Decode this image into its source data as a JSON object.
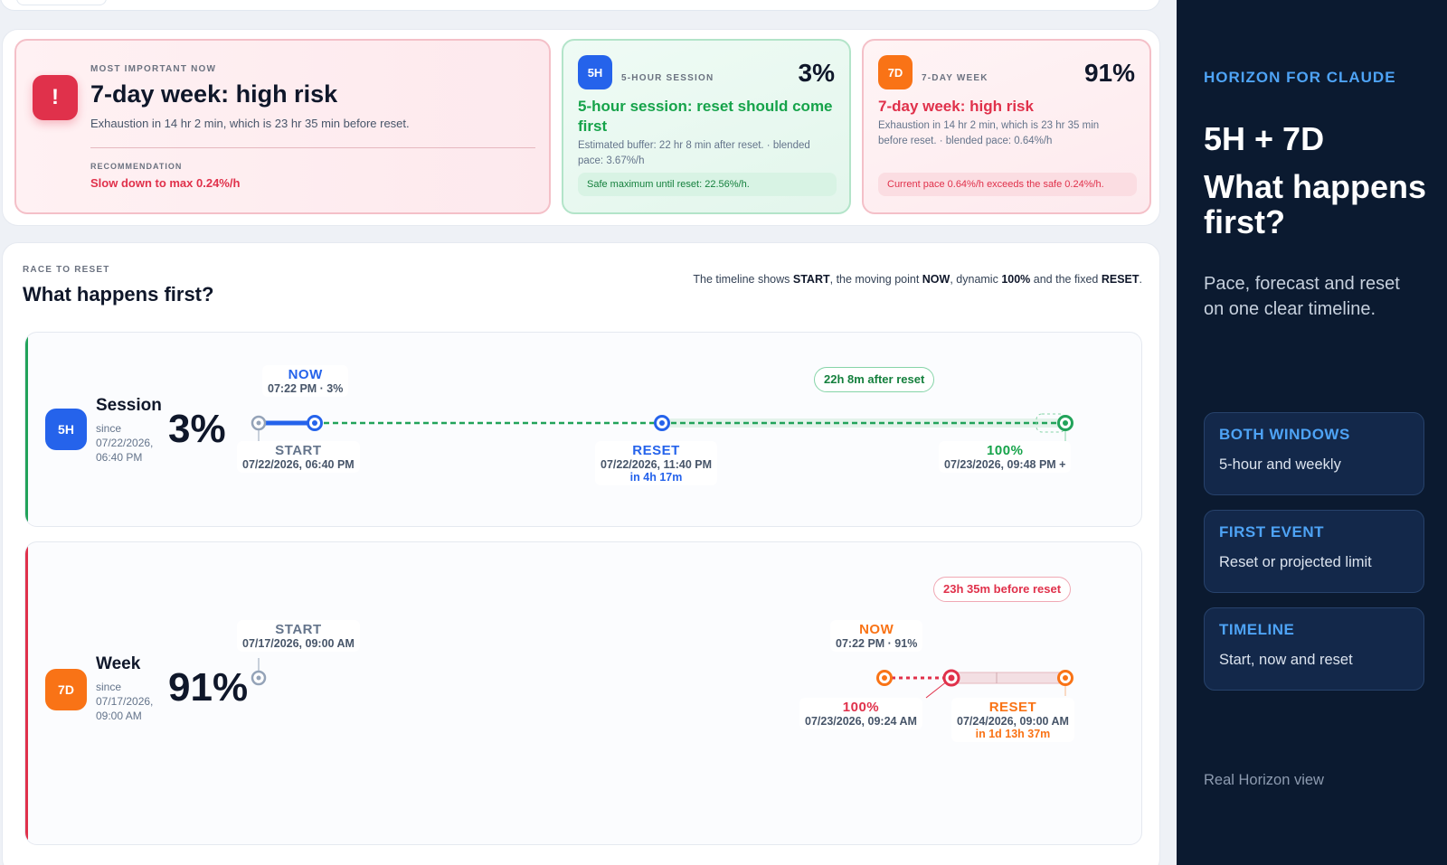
{
  "summary": {
    "main": {
      "eyebrow": "MOST IMPORTANT NOW",
      "icon": "exclamation-icon",
      "icon_glyph": "!",
      "title": "7-day week: high risk",
      "description": "Exhaustion in 14 hr 2 min, which is 23 hr 35 min before reset.",
      "recommendation_label": "RECOMMENDATION",
      "recommendation": "Slow down to max 0.24%/h"
    },
    "session": {
      "badge": "5H",
      "eyebrow": "5-HOUR SESSION",
      "percent": "3%",
      "title": "5-hour session: reset should come first",
      "description": "Estimated buffer: 22 hr 8 min after reset. · blended pace: 3.67%/h",
      "note": "Safe maximum until reset: 22.56%/h."
    },
    "week": {
      "badge": "7D",
      "eyebrow": "7-DAY WEEK",
      "percent": "91%",
      "title": "7-day week: high risk",
      "description": "Exhaustion in 14 hr 2 min, which is 23 hr 35 min before reset. · blended pace: 0.64%/h",
      "note": "Current pace 0.64%/h exceeds the safe 0.24%/h."
    }
  },
  "race": {
    "eyebrow": "RACE TO RESET",
    "title": "What happens first?",
    "hint_parts": [
      "The timeline shows ",
      "START",
      ", the moving point ",
      "NOW",
      ", dynamic ",
      "100%",
      " and the fixed ",
      "RESET",
      "."
    ],
    "session": {
      "badge": "5H",
      "name": "Session",
      "since": "since 07/22/2026, 06:40 PM",
      "percent": "3%",
      "pill": "22h 8m after reset",
      "now_label": "NOW",
      "now_sub": "07:22 PM · 3%",
      "start_label": "START",
      "start_sub": "07/22/2026, 06:40 PM",
      "reset_label": "RESET",
      "reset_sub": "07/22/2026, 11:40 PM",
      "reset_in": "in 4h 17m",
      "full_label": "100%",
      "full_sub": "07/23/2026, 09:48 PM +"
    },
    "week": {
      "badge": "7D",
      "name": "Week",
      "since": "since 07/17/2026, 09:00 AM",
      "percent": "91%",
      "pill": "23h 35m before reset",
      "start_label": "START",
      "start_sub": "07/17/2026, 09:00 AM",
      "now_label": "NOW",
      "now_sub": "07:22 PM · 91%",
      "full_label": "100%",
      "full_sub": "07/23/2026, 09:24 AM",
      "reset_label": "RESET",
      "reset_sub": "07/24/2026, 09:00 AM",
      "reset_in": "in 1d 13h 37m"
    }
  },
  "sidebar": {
    "brand": "HORIZON FOR CLAUDE",
    "title_line1": "5H + 7D",
    "title_line2": "What happens first?",
    "description": "Pace, forecast and reset on one clear timeline.",
    "cards": [
      {
        "title": "BOTH WINDOWS",
        "text": "5-hour and weekly"
      },
      {
        "title": "FIRST EVENT",
        "text": "Reset or projected limit"
      },
      {
        "title": "TIMELINE",
        "text": "Start, now and reset"
      }
    ],
    "footer": "Real Horizon view"
  },
  "colors": {
    "risk_red": "#e0314b",
    "safe_green": "#16a34a",
    "session_blue": "#2563eb",
    "week_orange": "#f97316",
    "sidebar_bg": "#0b1a30",
    "sidebar_accent": "#4ea3f5"
  }
}
